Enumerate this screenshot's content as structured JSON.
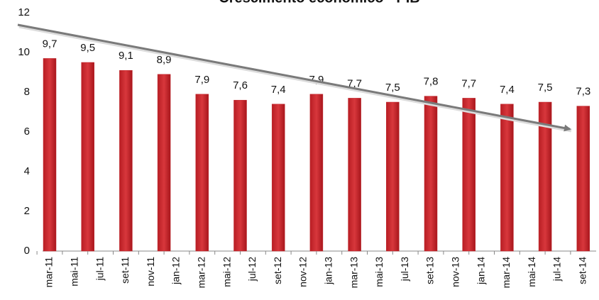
{
  "chart_data": {
    "type": "bar",
    "title": "Crescimento econômico - PIB",
    "categories": [
      "mar-11",
      null,
      "mai-11",
      null,
      "jul-11",
      null,
      "set-11",
      null,
      "nov-11",
      null,
      "jan-12",
      null,
      "mar-12",
      null,
      "mai-12",
      null,
      "jul-12",
      null,
      "set-12",
      null,
      "nov-12",
      null,
      "jan-13",
      null,
      "mar-13",
      null,
      "mai-13",
      null,
      "jul-13",
      null,
      "set-13",
      null,
      "nov-13",
      null,
      "jan-14",
      null,
      "mar-14",
      null,
      "mai-14",
      null,
      "jul-14",
      null,
      "set-14"
    ],
    "values": [
      9.7,
      null,
      null,
      9.5,
      null,
      null,
      9.1,
      null,
      null,
      8.9,
      null,
      null,
      7.9,
      null,
      null,
      7.6,
      null,
      null,
      7.4,
      null,
      null,
      7.9,
      null,
      null,
      7.7,
      null,
      null,
      7.5,
      null,
      null,
      7.8,
      null,
      null,
      7.7,
      null,
      null,
      7.4,
      null,
      null,
      7.5,
      null,
      null,
      7.3
    ],
    "value_labels": [
      "9,7",
      null,
      null,
      "9,5",
      null,
      null,
      "9,1",
      null,
      null,
      "8,9",
      null,
      null,
      "7,9",
      null,
      null,
      "7,6",
      null,
      null,
      "7,4",
      null,
      null,
      "7,9",
      null,
      null,
      "7,7",
      null,
      null,
      "7,5",
      null,
      null,
      "7,8",
      null,
      null,
      "7,7",
      null,
      null,
      "7,4",
      null,
      null,
      "7,5",
      null,
      null,
      "7,3"
    ],
    "color": "#c0262c",
    "ylim": [
      0,
      12
    ],
    "yticks": [
      0,
      2,
      4,
      6,
      8,
      10,
      12
    ],
    "grid": false
  }
}
